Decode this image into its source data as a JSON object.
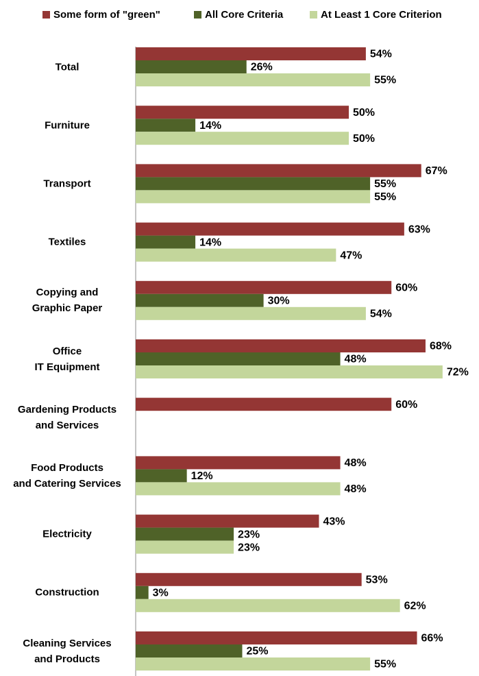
{
  "chart_data": {
    "type": "bar",
    "orientation": "horizontal",
    "categories": [
      "Total",
      "Furniture",
      "Transport",
      "Textiles",
      "Copying and\nGraphic Paper",
      "Office\nIT Equipment",
      "Gardening Products\nand Services",
      "Food Products\nand Catering Services",
      "Electricity",
      "Construction",
      "Cleaning Services\nand Products"
    ],
    "series": [
      {
        "name": "Some form of \"green\"",
        "color": "#943634",
        "values": [
          54,
          50,
          67,
          63,
          60,
          68,
          60,
          48,
          43,
          53,
          66
        ],
        "value_labels": [
          "54%",
          "50%",
          "67%",
          "63%",
          "60%",
          "68%",
          "60%",
          "48%",
          "43%",
          "53%",
          "66%"
        ]
      },
      {
        "name": "All Core Criteria",
        "color": "#4f6228",
        "values": [
          26,
          14,
          55,
          14,
          30,
          48,
          null,
          12,
          23,
          3,
          25
        ],
        "value_labels": [
          "26%",
          "14%",
          "55%",
          "14%",
          "30%",
          "48%",
          null,
          "12%",
          "23%",
          "3%",
          "25%"
        ]
      },
      {
        "name": "At Least 1 Core Criterion",
        "color": "#c3d69b",
        "values": [
          55,
          50,
          55,
          47,
          54,
          72,
          null,
          48,
          23,
          62,
          55
        ],
        "value_labels": [
          "55%",
          "50%",
          "55%",
          "47%",
          "54%",
          "72%",
          null,
          "48%",
          "23%",
          "62%",
          "55%"
        ]
      }
    ],
    "legend": "top"
  }
}
